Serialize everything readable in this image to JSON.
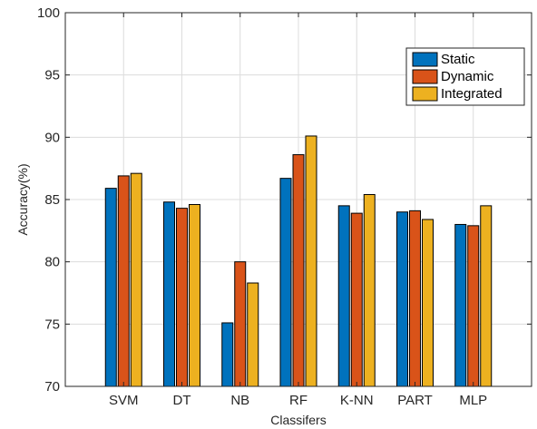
{
  "chart_data": {
    "type": "bar",
    "title": "",
    "xlabel": "Classifers",
    "ylabel": "Accuracy(%)",
    "categories": [
      "SVM",
      "DT",
      "NB",
      "RF",
      "K-NN",
      "PART",
      "MLP"
    ],
    "series": [
      {
        "name": "Static",
        "color": "#0072BD",
        "values": [
          85.9,
          84.8,
          75.1,
          86.7,
          84.5,
          84.0,
          83.0
        ]
      },
      {
        "name": "Dynamic",
        "color": "#D95319",
        "values": [
          86.9,
          84.3,
          80.0,
          88.6,
          83.9,
          84.1,
          82.9
        ]
      },
      {
        "name": "Integrated",
        "color": "#EDB120",
        "values": [
          87.1,
          84.6,
          78.3,
          90.1,
          85.4,
          83.4,
          84.5
        ]
      }
    ],
    "ylim": [
      70,
      100
    ],
    "yticks": [
      70,
      75,
      80,
      85,
      90,
      95,
      100
    ],
    "grid": true,
    "legend_position": "top-right"
  }
}
